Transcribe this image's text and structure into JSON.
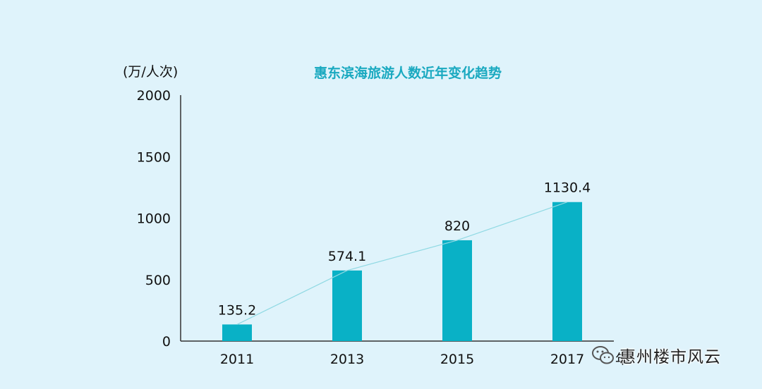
{
  "chart_data": {
    "type": "bar",
    "title": "惠东滨海旅游人数近年变化趋势",
    "ylabel": "(万/人次)",
    "xlabel_suffix": "年",
    "categories": [
      "2011",
      "2013",
      "2015",
      "2017"
    ],
    "values": [
      135.2,
      574.1,
      820,
      1130.4
    ],
    "value_labels": [
      "135.2",
      "574.1",
      "820",
      "1130.4"
    ],
    "ylim": [
      0,
      2000
    ],
    "yticks": [
      "0",
      "500",
      "1000",
      "1500",
      "2000"
    ],
    "trend_line": true,
    "grid": false,
    "colors": {
      "bar": "#09b1c6",
      "trend": "#8fd9e3",
      "title": "#1aa9c0",
      "background": "#dff3fb"
    }
  },
  "watermark": {
    "text": "惠州楼市风云",
    "icon": "wechat-icon"
  }
}
